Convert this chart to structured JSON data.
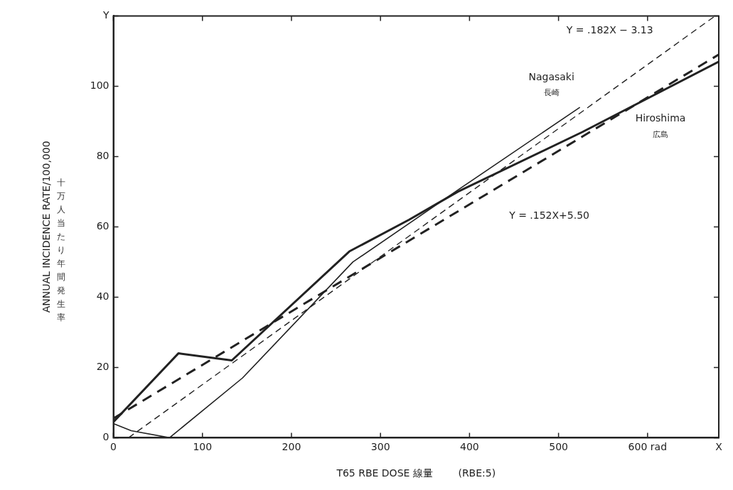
{
  "chart_data": {
    "type": "line",
    "xlabel": "T65 RBE DOSE 線量        (RBE:5)",
    "ylabel": "ANNUAL INCIDENCE RATE/100,000",
    "xlim": [
      0,
      680
    ],
    "xticks": [
      0,
      100,
      200,
      300,
      400,
      500,
      {
        "value": 600,
        "label": "600 rad"
      },
      {
        "value": 680,
        "label": "X"
      }
    ],
    "ylim": [
      0,
      120
    ],
    "yticks": [
      0,
      20,
      40,
      60,
      80,
      100,
      {
        "value": 120,
        "label": "Y"
      }
    ],
    "grid": false,
    "legend": false,
    "marker": "none",
    "series": [
      {
        "name": "Nagasaki\n長崎",
        "color": "#222222",
        "line_style": "solid",
        "x": [
          0,
          20,
          63,
          145,
          269,
          390,
          524
        ],
        "values": [
          4,
          2,
          0,
          17,
          50,
          71,
          94
        ]
      },
      {
        "name": "Hiroshima\n広島",
        "color": "#222222",
        "line_style": "solid",
        "x": [
          0,
          73,
          133,
          265,
          332,
          387,
          527,
          680
        ],
        "values": [
          4.5,
          24,
          22,
          53,
          62,
          70,
          87,
          107
        ]
      },
      {
        "color": "#222222",
        "line_style": "dashed",
        "x": [
          17,
          676
        ],
        "values": [
          0,
          120
        ]
      },
      {
        "color": "#222222",
        "line_style": "dashed",
        "x": [
          0,
          680
        ],
        "values": [
          5.5,
          109
        ]
      }
    ],
    "annotations": [
      "十万人当たり年間発生率",
      "Y = .182X − 3.13",
      "Y = .152X+5.50"
    ]
  }
}
